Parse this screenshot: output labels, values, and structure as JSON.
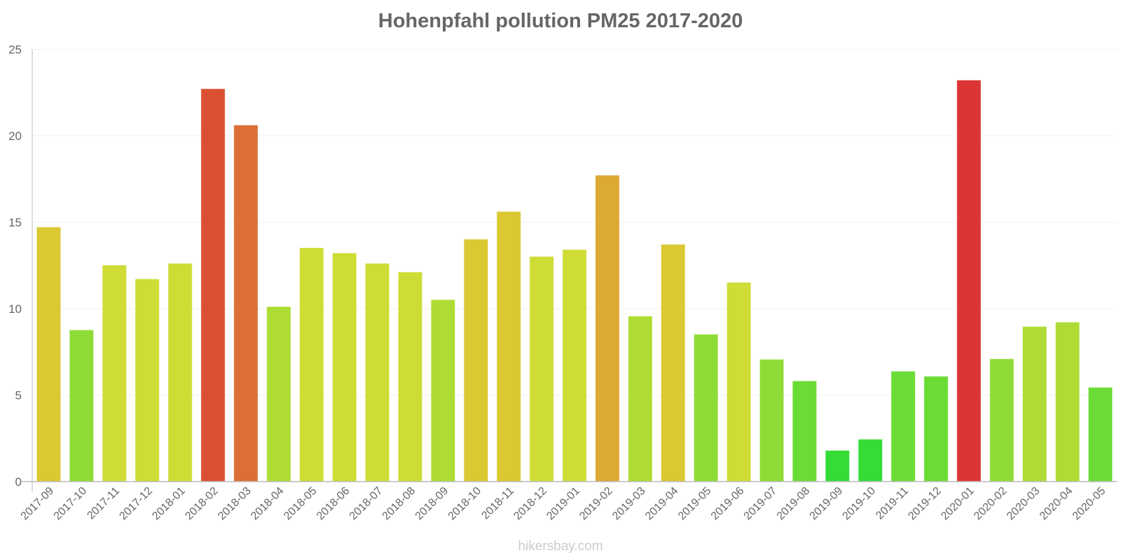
{
  "chart_data": {
    "type": "bar",
    "title": "Hohenpfahl pollution PM25 2017-2020",
    "xlabel": "",
    "ylabel": "",
    "ylim": [
      0,
      25
    ],
    "yticks": [
      0,
      5,
      10,
      15,
      20,
      25
    ],
    "grid": true,
    "legend": null,
    "categories": [
      "2017-09",
      "2017-10",
      "2017-11",
      "2017-12",
      "2018-01",
      "2018-02",
      "2018-03",
      "2018-04",
      "2018-05",
      "2018-06",
      "2018-07",
      "2018-08",
      "2018-09",
      "2018-10",
      "2018-11",
      "2018-12",
      "2019-01",
      "2019-02",
      "2019-03",
      "2019-04",
      "2019-05",
      "2019-06",
      "2019-07",
      "2019-08",
      "2019-09",
      "2019-10",
      "2019-11",
      "2019-12",
      "2020-01",
      "2020-02",
      "2020-03",
      "2020-04",
      "2020-05"
    ],
    "values": [
      14.7,
      8.75,
      12.5,
      11.7,
      12.6,
      22.7,
      20.6,
      10.1,
      13.5,
      13.2,
      12.6,
      12.1,
      10.5,
      14.0,
      15.6,
      13.0,
      13.4,
      17.7,
      9.55,
      13.7,
      8.5,
      11.5,
      7.05,
      5.8,
      1.78,
      2.43,
      6.36,
      6.07,
      23.2,
      7.08,
      8.95,
      9.2,
      5.43
    ],
    "colors": [
      "#dbc832",
      "#8fdc37",
      "#cfdc35",
      "#cfdc35",
      "#cfdc35",
      "#db5033",
      "#dc6f35",
      "#aedc35",
      "#cfdc35",
      "#cfdc35",
      "#cfdc35",
      "#cfdc35",
      "#aedc35",
      "#dbc832",
      "#dbc832",
      "#cfdc35",
      "#cfdc35",
      "#dca935",
      "#aedc35",
      "#dbc832",
      "#8fdc37",
      "#cfdc35",
      "#8fdc37",
      "#6bdc35",
      "#34dc35",
      "#34dc35",
      "#6bdc35",
      "#6bdc35",
      "#db3535",
      "#8fdc37",
      "#aedc35",
      "#aedc35",
      "#6bdc35"
    ]
  },
  "watermark": "hikersbay.com"
}
